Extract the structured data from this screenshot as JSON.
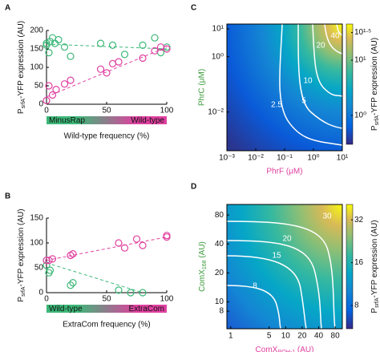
{
  "chart_data": [
    {
      "type": "scatter",
      "panel": "A",
      "ylabel": [
        "P",
        "srfA",
        "-YFP expression (AU)"
      ],
      "xlabel": "Wild-type frequency (%)",
      "bar_labels": [
        "MinusRap",
        "Wild-type"
      ],
      "xlim": [
        0,
        100
      ],
      "xticks": [
        0,
        50,
        100
      ],
      "ylim": [
        0,
        200
      ],
      "yticks": [
        0,
        50,
        100,
        150,
        200
      ],
      "series": [
        {
          "color": "#3cb878",
          "x": [
            0,
            0,
            2,
            3,
            5,
            7,
            10,
            15,
            20,
            45,
            55,
            65,
            80,
            90,
            95,
            100
          ],
          "values": [
            165,
            160,
            140,
            170,
            180,
            165,
            175,
            155,
            130,
            165,
            160,
            135,
            160,
            180,
            140,
            155
          ],
          "fit_x": [
            0,
            100
          ],
          "fit_values": [
            163,
            150
          ]
        },
        {
          "color": "#e040a0",
          "x": [
            0,
            2,
            5,
            8,
            15,
            20,
            45,
            50,
            55,
            60,
            80,
            90,
            95,
            100
          ],
          "values": [
            10,
            50,
            25,
            40,
            55,
            65,
            95,
            85,
            110,
            115,
            125,
            145,
            155,
            150
          ],
          "fit_x": [
            0,
            100
          ],
          "fit_values": [
            20,
            155
          ]
        }
      ]
    },
    {
      "type": "scatter",
      "panel": "B",
      "ylabel": [
        "P",
        "srfA",
        "-YFP expression (AU)"
      ],
      "xlabel": "ExtraCom frequency (%)",
      "bar_labels": [
        "Wild-type",
        "ExtraCom"
      ],
      "xlim": [
        0,
        100
      ],
      "xticks": [
        0,
        50,
        100
      ],
      "ylim": [
        0,
        150
      ],
      "yticks": [
        0,
        50,
        100,
        150
      ],
      "series": [
        {
          "color": "#3cb878",
          "x": [
            0,
            0,
            2,
            3,
            20,
            22,
            60,
            70,
            80
          ],
          "values": [
            65,
            55,
            40,
            45,
            15,
            20,
            5,
            0,
            0
          ],
          "fit_x": [
            0,
            80
          ],
          "fit_values": [
            60,
            0
          ]
        },
        {
          "color": "#e040a0",
          "x": [
            0,
            2,
            5,
            20,
            22,
            60,
            65,
            75,
            80,
            100,
            100
          ],
          "values": [
            65,
            65,
            68,
            75,
            78,
            100,
            90,
            108,
            95,
            115,
            112
          ],
          "fit_x": [
            0,
            100
          ],
          "fit_values": [
            65,
            112
          ]
        }
      ]
    },
    {
      "type": "heatmap",
      "panel": "C",
      "xlabel": "PhrF (μM)",
      "ylabel": "PhrC (μM)",
      "xlabel_color": "#e040a0",
      "ylabel_color": "#3a9a3a",
      "log_x": true,
      "log_y": true,
      "xlim": [
        0.001,
        10
      ],
      "xticks": [
        {
          "value": 0.001,
          "label": "10⁻³"
        },
        {
          "value": 0.01,
          "label": "10⁻²"
        },
        {
          "value": 0.1,
          "label": "10⁻¹"
        },
        {
          "value": 1,
          "label": "10⁰"
        },
        {
          "value": 10,
          "label": "10¹"
        }
      ],
      "ylim": [
        0.0004,
        15
      ],
      "yticks": [
        {
          "value": 0.01,
          "label": "10⁻²"
        },
        {
          "value": 1,
          "label": "10⁰"
        },
        {
          "value": 10,
          "label": "10¹"
        }
      ],
      "colorbar_label": [
        "P",
        "srfA",
        "-YFP expression (AU)"
      ],
      "clim": [
        0.3,
        45
      ],
      "cticks": [
        {
          "value": 1,
          "label": "10⁰"
        },
        {
          "value": 10,
          "label": "10¹"
        },
        {
          "value": 31.6,
          "label": "10¹ᐧ⁵"
        }
      ],
      "contours": [
        2.5,
        5,
        10,
        20,
        40
      ]
    },
    {
      "type": "heatmap",
      "panel": "D",
      "xlabel": [
        "ComX",
        "ROH-1",
        " (AU)"
      ],
      "ylabel": [
        "ComX",
        "168",
        " (AU)"
      ],
      "xlabel_color": "#e040a0",
      "ylabel_color": "#3a9a3a",
      "log_x": true,
      "log_y": true,
      "xlim": [
        0.85,
        108
      ],
      "xticks": [
        1,
        5,
        10,
        20,
        40,
        80
      ],
      "ylim": [
        5.25,
        103
      ],
      "yticks": [
        8,
        10,
        20,
        40,
        80
      ],
      "colorbar_label": [
        "P",
        "srfA",
        "-YFP expression (AU)"
      ],
      "clim": [
        5.5,
        41
      ],
      "cticks": [
        8,
        16,
        32
      ],
      "contours": [
        8,
        15,
        20,
        30
      ]
    }
  ]
}
